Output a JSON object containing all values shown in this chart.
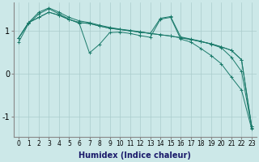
{
  "background_color": "#cce8e8",
  "grid_color": "#aacccc",
  "line_color": "#1a7a6a",
  "xlabel": "Humidex (Indice chaleur)",
  "xlabel_fontsize": 7,
  "ytick_fontsize": 7,
  "xtick_fontsize": 5.5,
  "xlim": [
    -0.5,
    23.5
  ],
  "ylim": [
    -1.45,
    1.65
  ],
  "yticks": [
    -1,
    0,
    1
  ],
  "xticks": [
    0,
    1,
    2,
    3,
    4,
    5,
    6,
    7,
    8,
    9,
    10,
    11,
    12,
    13,
    14,
    15,
    16,
    17,
    18,
    19,
    20,
    21,
    22,
    23
  ],
  "series": [
    [
      0.82,
      1.18,
      1.3,
      1.42,
      1.35,
      1.25,
      1.18,
      1.16,
      1.1,
      1.05,
      1.02,
      0.99,
      0.96,
      0.93,
      0.9,
      0.87,
      0.83,
      0.79,
      0.74,
      0.69,
      0.62,
      0.54,
      0.32,
      -1.22
    ],
    [
      0.82,
      1.18,
      1.3,
      1.42,
      1.35,
      1.25,
      1.18,
      1.16,
      1.1,
      1.05,
      1.02,
      0.99,
      0.96,
      0.93,
      0.9,
      0.87,
      0.83,
      0.79,
      0.74,
      0.69,
      0.62,
      0.54,
      0.32,
      -1.22
    ],
    [
      0.82,
      1.18,
      1.42,
      1.52,
      1.42,
      1.3,
      1.22,
      1.18,
      1.12,
      1.07,
      1.03,
      1.0,
      0.97,
      0.93,
      1.28,
      1.32,
      0.85,
      0.8,
      0.75,
      0.68,
      0.6,
      0.38,
      0.05,
      -1.25
    ],
    [
      0.72,
      1.16,
      1.38,
      1.5,
      1.38,
      1.26,
      1.16,
      0.48,
      0.68,
      0.95,
      0.96,
      0.93,
      0.88,
      0.84,
      1.26,
      1.3,
      0.8,
      0.73,
      0.58,
      0.42,
      0.23,
      -0.08,
      -0.38,
      -1.28
    ]
  ]
}
